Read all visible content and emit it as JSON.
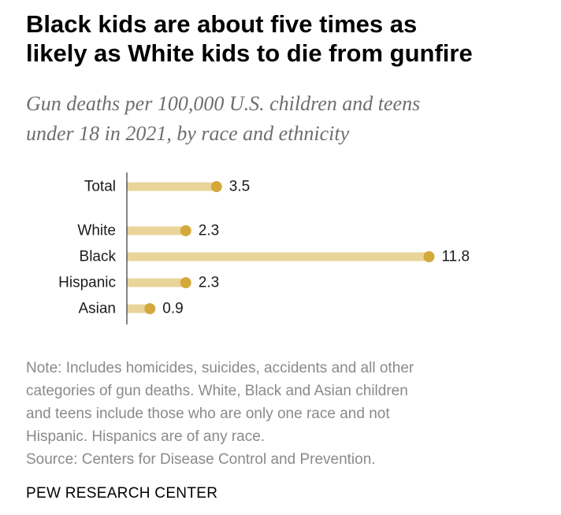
{
  "title_lines": [
    "Black kids are about five times as",
    "likely as White kids to die from gunfire"
  ],
  "subtitle_lines": [
    "Gun deaths per 100,000 U.S. children and teens",
    "under 18 in 2021, by race and ethnicity"
  ],
  "chart_data": {
    "type": "bar",
    "categories": [
      "Total",
      "White",
      "Black",
      "Hispanic",
      "Asian"
    ],
    "values": [
      3.5,
      2.3,
      11.8,
      2.3,
      0.9
    ],
    "value_labels": [
      "3.5",
      "2.3",
      "11.8",
      "2.3",
      "0.9"
    ],
    "orientation": "horizontal",
    "xlim": [
      0,
      12
    ],
    "grid": false,
    "legend": "none",
    "colors": {
      "bar": "#e9d49a",
      "dot": "#d4a93c",
      "axis": "#333333",
      "label": "#1a1a1a"
    }
  },
  "note_lines": [
    "Note: Includes homicides, suicides, accidents and all other",
    "categories of gun deaths. White, Black and Asian children",
    "and teens include those who are only one race and not",
    "Hispanic. Hispanics are of any race.",
    "Source: Centers for Disease Control and Prevention."
  ],
  "brand": "PEW RESEARCH CENTER"
}
